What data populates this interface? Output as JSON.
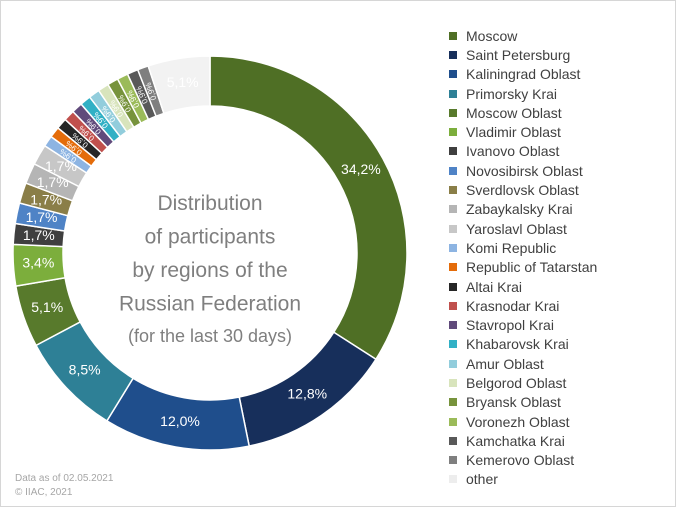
{
  "chart_data": {
    "type": "pie",
    "title_lines": [
      "Distribution",
      "of participants",
      "by regions of the",
      "Russian Federation"
    ],
    "subtitle": "(for the last 30 days)",
    "categories": [
      "Moscow",
      "Saint Petersburg",
      "Kaliningrad Oblast",
      "Primorsky Krai",
      "Moscow Oblast",
      "Vladimir Oblast",
      "Ivanovo Oblast",
      "Novosibirsk Oblast",
      "Sverdlovsk Oblast",
      "Zabaykalsky Krai",
      "Yaroslavl Oblast",
      "Komi Republic",
      "Republic of Tatarstan",
      "Altai Krai",
      "Krasnodar Krai",
      "Stavropol Krai",
      "Khabarovsk Krai",
      "Amur Oblast",
      "Belgorod Oblast",
      "Bryansk Oblast",
      "Voronezh Oblast",
      "Kamchatka Krai",
      "Kemerovo Oblast",
      "other"
    ],
    "values": [
      34.2,
      12.8,
      12.0,
      8.5,
      5.1,
      3.4,
      1.7,
      1.7,
      1.7,
      1.7,
      1.7,
      0.9,
      0.9,
      0.9,
      0.9,
      0.9,
      0.9,
      0.9,
      0.9,
      0.9,
      0.9,
      0.9,
      0.9,
      5.1
    ],
    "labels": [
      "34,2%",
      "12,8%",
      "12,0%",
      "8,5%",
      "5,1%",
      "3,4%",
      "1,7%",
      "1,7%",
      "1,7%",
      "1,7%",
      "1,7%",
      "0,9%",
      "0,9%",
      "0,9%",
      "0,9%",
      "0,9%",
      "0,9%",
      "0,9%",
      "0,9%",
      "0,9%",
      "0,9%",
      "0,9%",
      "0,9%",
      "5,1%"
    ],
    "colors": [
      "#4f6f25",
      "#172f5b",
      "#1f4e8c",
      "#2e8096",
      "#587a2c",
      "#7cae3c",
      "#3f3f3f",
      "#4f83c6",
      "#8a7e48",
      "#b5b5b5",
      "#c7c7c7",
      "#8db4e2",
      "#e46c0a",
      "#262626",
      "#c0504d",
      "#604a7b",
      "#31b0c5",
      "#92cddc",
      "#d8e4bc",
      "#77933c",
      "#9bbb59",
      "#595959",
      "#7f7f7f",
      "#f2f2f2"
    ],
    "label_colors": [
      "#ffffff",
      "#ffffff",
      "#ffffff",
      "#ffffff",
      "#ffffff",
      "#ffffff",
      "#ffffff",
      "#ffffff",
      "#ffffff",
      "#ffffff",
      "#ffffff",
      "#ffffff",
      "#ffffff",
      "#ffffff",
      "#ffffff",
      "#ffffff",
      "#ffffff",
      "#ffffff",
      "#ffffff",
      "#ffffff",
      "#ffffff",
      "#ffffff",
      "#ffffff",
      "#ffffff"
    ],
    "legend_placement": "right"
  },
  "footnote": {
    "line1": "Data as of 02.05.2021",
    "line2": "© IIAC, 2021"
  }
}
